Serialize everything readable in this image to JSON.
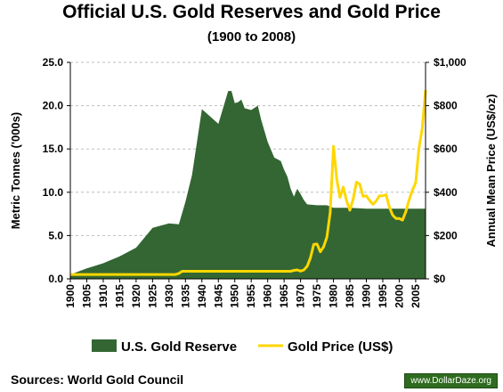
{
  "chart_data": {
    "type": "area+line",
    "title": "Official U.S. Gold Reserves and Gold Price",
    "subtitle": "(1900 to 2008)",
    "ylabel_left": "Metric Tonnes ('000s)",
    "ylabel_right": "Annual Mean Price (US$/oz)",
    "ylim_left": [
      0,
      25
    ],
    "ylim_right": [
      0,
      1000
    ],
    "xlim": [
      1900,
      2008
    ],
    "left_ticks": [
      "0.0",
      "5.0",
      "10.0",
      "15.0",
      "20.0",
      "25.0"
    ],
    "right_ticks": [
      "$0",
      "$200",
      "$400",
      "$600",
      "$800",
      "$1,000"
    ],
    "x_ticks": [
      "1900",
      "1905",
      "1910",
      "1915",
      "1920",
      "1925",
      "1930",
      "1935",
      "1940",
      "1945",
      "1950",
      "1955",
      "1960",
      "1965",
      "1970",
      "1975",
      "1980",
      "1985",
      "1990",
      "1995",
      "2000",
      "2005"
    ],
    "grid": true,
    "legend_position": "bottom",
    "series": [
      {
        "name": "U.S. Gold Reserve",
        "axis": "left",
        "kind": "area",
        "color": "#336633",
        "x": [
          1900,
          1905,
          1910,
          1915,
          1920,
          1925,
          1930,
          1933,
          1935,
          1937,
          1940,
          1945,
          1948,
          1949,
          1950,
          1951,
          1952,
          1953,
          1955,
          1957,
          1958,
          1960,
          1962,
          1964,
          1965,
          1966,
          1967,
          1968,
          1969,
          1970,
          1971,
          1972,
          1975,
          1978,
          1980,
          1985,
          1990,
          1995,
          2000,
          2005,
          2008
        ],
        "values": [
          0.5,
          1.2,
          1.8,
          2.6,
          3.6,
          5.9,
          6.4,
          6.3,
          8.9,
          12.0,
          19.6,
          17.9,
          21.7,
          21.7,
          20.3,
          20.4,
          20.7,
          19.7,
          19.5,
          20.0,
          18.4,
          15.8,
          14.0,
          13.6,
          12.6,
          11.8,
          10.4,
          9.5,
          10.4,
          9.8,
          9.1,
          8.6,
          8.5,
          8.5,
          8.2,
          8.2,
          8.1,
          8.1,
          8.1,
          8.1,
          8.1
        ]
      },
      {
        "name": "Gold Price (US$)",
        "axis": "right",
        "kind": "line",
        "color": "#ffd700",
        "x": [
          1900,
          1905,
          1910,
          1915,
          1920,
          1925,
          1930,
          1931,
          1932,
          1933,
          1934,
          1935,
          1940,
          1945,
          1950,
          1955,
          1960,
          1965,
          1967,
          1968,
          1969,
          1970,
          1971,
          1972,
          1973,
          1974,
          1975,
          1976,
          1977,
          1978,
          1979,
          1980,
          1981,
          1982,
          1983,
          1984,
          1985,
          1986,
          1987,
          1988,
          1989,
          1990,
          1991,
          1992,
          1993,
          1994,
          1995,
          1996,
          1997,
          1998,
          1999,
          2000,
          2001,
          2002,
          2003,
          2004,
          2005,
          2006,
          2007,
          2008
        ],
        "values": [
          20,
          20,
          20,
          20,
          20,
          20,
          20,
          20,
          20,
          25,
          35,
          35,
          35,
          35,
          35,
          35,
          35,
          35,
          35,
          39,
          41,
          36,
          41,
          58,
          97,
          159,
          161,
          125,
          148,
          193,
          307,
          612,
          460,
          376,
          424,
          361,
          317,
          368,
          447,
          437,
          381,
          383,
          362,
          344,
          360,
          384,
          384,
          388,
          331,
          294,
          279,
          279,
          271,
          310,
          364,
          409,
          444,
          604,
          695,
          872
        ]
      }
    ]
  },
  "footer": {
    "source": "Sources: World Gold Council",
    "watermark": "www.DollarDaze.org"
  }
}
